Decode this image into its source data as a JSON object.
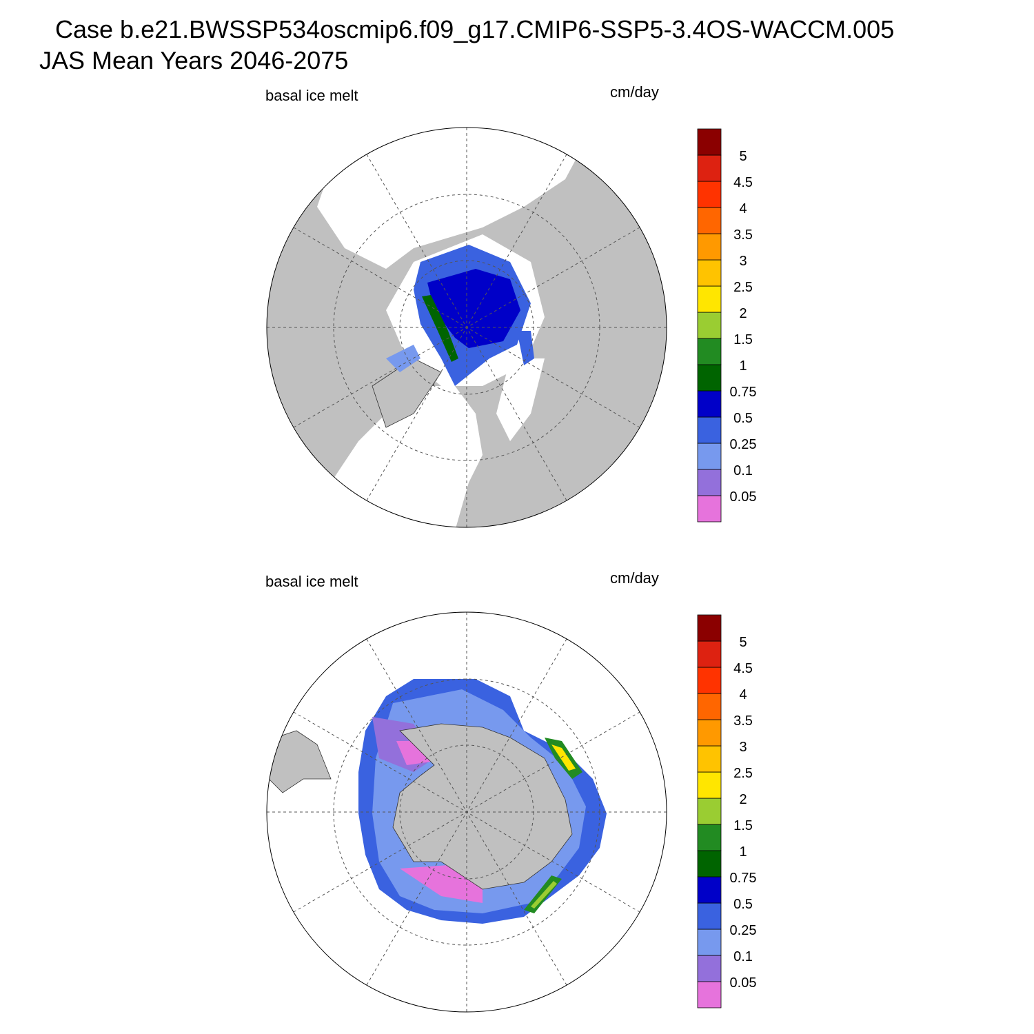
{
  "title": "Case b.e21.BWSSP534oscmip6.f09_g17.CMIP6-SSP5-3.4OS-WACCM.005",
  "subtitle": "JAS Mean   Years 2046-2075",
  "panels": [
    {
      "label": "basal ice melt",
      "units": "cm/day",
      "levels": [
        0.05,
        0.1,
        0.25,
        0.5,
        0.75,
        1,
        1.5,
        2,
        2.5,
        3,
        3.5,
        4,
        4.5,
        5
      ],
      "colors": [
        "#e673dc",
        "#9370db",
        "#7799ee",
        "#3a62e0",
        "#0000c8",
        "#006400",
        "#228b22",
        "#9acd32",
        "#ffe600",
        "#ffc300",
        "#ff9900",
        "#ff6600",
        "#ff3300",
        "#dd2211",
        "#8b0000"
      ]
    },
    {
      "label": "basal ice melt",
      "units": "cm/day",
      "levels": [
        0.05,
        0.1,
        0.25,
        0.5,
        0.75,
        1,
        1.5,
        2,
        2.5,
        3,
        3.5,
        4,
        4.5,
        5
      ],
      "colors": [
        "#e673dc",
        "#9370db",
        "#7799ee",
        "#3a62e0",
        "#0000c8",
        "#006400",
        "#228b22",
        "#9acd32",
        "#ffe600",
        "#ffc300",
        "#ff9900",
        "#ff6600",
        "#ff3300",
        "#dd2211",
        "#8b0000"
      ]
    }
  ]
}
